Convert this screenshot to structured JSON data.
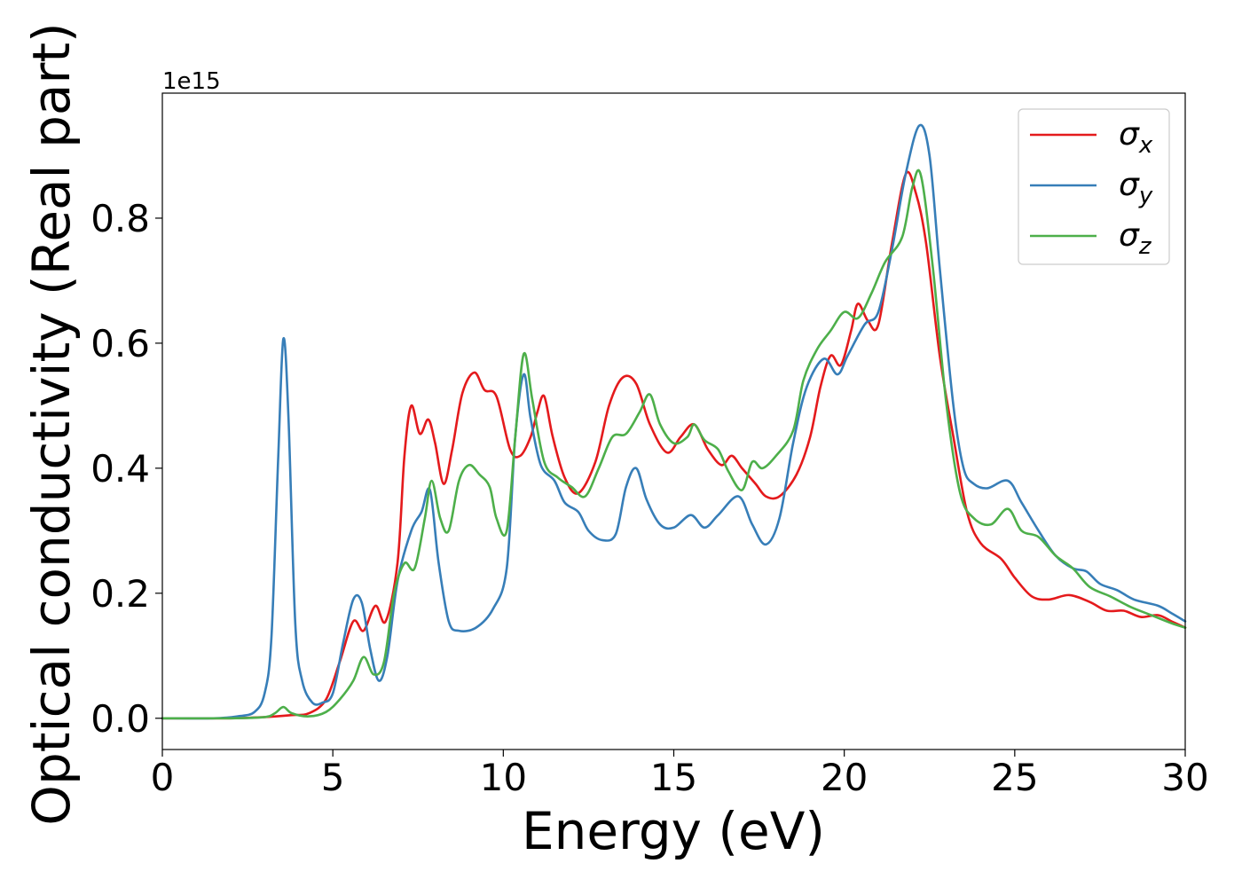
{
  "chart_data": {
    "type": "line",
    "title": "",
    "xlabel": "Energy (eV)",
    "ylabel": "Optical conductivity (Real part)",
    "offset_label": "1e15",
    "xlim": [
      0,
      30
    ],
    "ylim": [
      -0.05,
      1.0
    ],
    "xticks": [
      0,
      5,
      10,
      15,
      20,
      25,
      30
    ],
    "xtick_labels": [
      "0",
      "5",
      "10",
      "15",
      "20",
      "25",
      "30"
    ],
    "yticks": [
      0.0,
      0.2,
      0.4,
      0.6,
      0.8
    ],
    "ytick_labels": [
      "0.0",
      "0.2",
      "0.4",
      "0.6",
      "0.8"
    ],
    "grid": false,
    "legend": {
      "position": "top-right"
    },
    "series": [
      {
        "name": "σ",
        "subscript": "x",
        "color": "#e41a1c",
        "points": [
          [
            0,
            0.0
          ],
          [
            2.0,
            0.0
          ],
          [
            3.0,
            0.002
          ],
          [
            3.8,
            0.005
          ],
          [
            4.3,
            0.008
          ],
          [
            4.8,
            0.03
          ],
          [
            5.2,
            0.09
          ],
          [
            5.6,
            0.155
          ],
          [
            5.9,
            0.14
          ],
          [
            6.25,
            0.18
          ],
          [
            6.55,
            0.155
          ],
          [
            6.9,
            0.25
          ],
          [
            7.1,
            0.42
          ],
          [
            7.3,
            0.5
          ],
          [
            7.55,
            0.455
          ],
          [
            7.8,
            0.478
          ],
          [
            8.0,
            0.44
          ],
          [
            8.25,
            0.375
          ],
          [
            8.5,
            0.43
          ],
          [
            8.8,
            0.52
          ],
          [
            9.15,
            0.553
          ],
          [
            9.45,
            0.525
          ],
          [
            9.8,
            0.515
          ],
          [
            10.2,
            0.43
          ],
          [
            10.5,
            0.42
          ],
          [
            10.8,
            0.45
          ],
          [
            11.0,
            0.49
          ],
          [
            11.2,
            0.515
          ],
          [
            11.45,
            0.45
          ],
          [
            11.8,
            0.385
          ],
          [
            12.2,
            0.36
          ],
          [
            12.7,
            0.41
          ],
          [
            13.1,
            0.5
          ],
          [
            13.5,
            0.545
          ],
          [
            13.9,
            0.535
          ],
          [
            14.3,
            0.47
          ],
          [
            14.8,
            0.425
          ],
          [
            15.2,
            0.45
          ],
          [
            15.6,
            0.47
          ],
          [
            16.0,
            0.43
          ],
          [
            16.4,
            0.405
          ],
          [
            16.7,
            0.42
          ],
          [
            17.0,
            0.4
          ],
          [
            17.4,
            0.375
          ],
          [
            17.7,
            0.355
          ],
          [
            18.1,
            0.355
          ],
          [
            18.6,
            0.39
          ],
          [
            19.0,
            0.45
          ],
          [
            19.3,
            0.53
          ],
          [
            19.6,
            0.58
          ],
          [
            19.9,
            0.565
          ],
          [
            20.2,
            0.62
          ],
          [
            20.4,
            0.663
          ],
          [
            20.7,
            0.635
          ],
          [
            21.0,
            0.63
          ],
          [
            21.4,
            0.76
          ],
          [
            21.8,
            0.87
          ],
          [
            22.1,
            0.84
          ],
          [
            22.4,
            0.76
          ],
          [
            22.8,
            0.58
          ],
          [
            23.2,
            0.45
          ],
          [
            23.6,
            0.33
          ],
          [
            24.0,
            0.28
          ],
          [
            24.6,
            0.255
          ],
          [
            25.0,
            0.225
          ],
          [
            25.5,
            0.195
          ],
          [
            26.0,
            0.19
          ],
          [
            26.6,
            0.197
          ],
          [
            27.2,
            0.186
          ],
          [
            27.7,
            0.172
          ],
          [
            28.2,
            0.172
          ],
          [
            28.7,
            0.162
          ],
          [
            29.2,
            0.165
          ],
          [
            29.6,
            0.155
          ],
          [
            30.0,
            0.145
          ]
        ]
      },
      {
        "name": "σ",
        "subscript": "y",
        "color": "#377eb8",
        "points": [
          [
            0,
            0.0
          ],
          [
            1.5,
            0.0
          ],
          [
            2.2,
            0.003
          ],
          [
            2.7,
            0.01
          ],
          [
            3.0,
            0.04
          ],
          [
            3.2,
            0.13
          ],
          [
            3.4,
            0.42
          ],
          [
            3.55,
            0.607
          ],
          [
            3.7,
            0.48
          ],
          [
            3.9,
            0.15
          ],
          [
            4.1,
            0.06
          ],
          [
            4.4,
            0.025
          ],
          [
            4.7,
            0.025
          ],
          [
            5.0,
            0.04
          ],
          [
            5.3,
            0.12
          ],
          [
            5.6,
            0.19
          ],
          [
            5.85,
            0.185
          ],
          [
            6.1,
            0.11
          ],
          [
            6.35,
            0.06
          ],
          [
            6.6,
            0.1
          ],
          [
            6.9,
            0.22
          ],
          [
            7.3,
            0.3
          ],
          [
            7.6,
            0.33
          ],
          [
            7.85,
            0.365
          ],
          [
            8.1,
            0.25
          ],
          [
            8.4,
            0.155
          ],
          [
            8.7,
            0.14
          ],
          [
            9.2,
            0.145
          ],
          [
            9.7,
            0.175
          ],
          [
            10.1,
            0.24
          ],
          [
            10.35,
            0.45
          ],
          [
            10.6,
            0.55
          ],
          [
            10.8,
            0.48
          ],
          [
            11.1,
            0.405
          ],
          [
            11.5,
            0.38
          ],
          [
            11.8,
            0.345
          ],
          [
            12.2,
            0.33
          ],
          [
            12.5,
            0.3
          ],
          [
            12.9,
            0.285
          ],
          [
            13.3,
            0.295
          ],
          [
            13.6,
            0.37
          ],
          [
            13.9,
            0.4
          ],
          [
            14.2,
            0.35
          ],
          [
            14.6,
            0.31
          ],
          [
            15.0,
            0.305
          ],
          [
            15.5,
            0.325
          ],
          [
            15.9,
            0.305
          ],
          [
            16.3,
            0.325
          ],
          [
            16.9,
            0.355
          ],
          [
            17.3,
            0.31
          ],
          [
            17.7,
            0.278
          ],
          [
            18.1,
            0.32
          ],
          [
            18.5,
            0.44
          ],
          [
            18.9,
            0.53
          ],
          [
            19.4,
            0.575
          ],
          [
            19.8,
            0.55
          ],
          [
            20.1,
            0.58
          ],
          [
            20.6,
            0.63
          ],
          [
            21.0,
            0.65
          ],
          [
            21.4,
            0.75
          ],
          [
            21.8,
            0.87
          ],
          [
            22.2,
            0.948
          ],
          [
            22.5,
            0.9
          ],
          [
            22.8,
            0.72
          ],
          [
            23.2,
            0.5
          ],
          [
            23.5,
            0.4
          ],
          [
            23.8,
            0.375
          ],
          [
            24.2,
            0.368
          ],
          [
            24.8,
            0.38
          ],
          [
            25.2,
            0.345
          ],
          [
            25.7,
            0.3
          ],
          [
            26.2,
            0.26
          ],
          [
            26.7,
            0.24
          ],
          [
            27.1,
            0.235
          ],
          [
            27.5,
            0.215
          ],
          [
            28.0,
            0.205
          ],
          [
            28.5,
            0.19
          ],
          [
            29.2,
            0.18
          ],
          [
            29.6,
            0.168
          ],
          [
            30.0,
            0.155
          ]
        ]
      },
      {
        "name": "σ",
        "subscript": "z",
        "color": "#4daf4a",
        "points": [
          [
            0,
            0.0
          ],
          [
            2.0,
            0.0
          ],
          [
            3.0,
            0.002
          ],
          [
            3.3,
            0.008
          ],
          [
            3.55,
            0.018
          ],
          [
            3.8,
            0.008
          ],
          [
            4.3,
            0.003
          ],
          [
            4.8,
            0.01
          ],
          [
            5.2,
            0.03
          ],
          [
            5.6,
            0.06
          ],
          [
            5.9,
            0.098
          ],
          [
            6.2,
            0.07
          ],
          [
            6.5,
            0.09
          ],
          [
            6.8,
            0.2
          ],
          [
            7.1,
            0.248
          ],
          [
            7.4,
            0.24
          ],
          [
            7.7,
            0.32
          ],
          [
            7.9,
            0.38
          ],
          [
            8.15,
            0.32
          ],
          [
            8.4,
            0.3
          ],
          [
            8.7,
            0.38
          ],
          [
            9.0,
            0.405
          ],
          [
            9.3,
            0.39
          ],
          [
            9.6,
            0.37
          ],
          [
            9.8,
            0.32
          ],
          [
            10.1,
            0.3
          ],
          [
            10.35,
            0.45
          ],
          [
            10.6,
            0.583
          ],
          [
            10.85,
            0.51
          ],
          [
            11.2,
            0.41
          ],
          [
            11.6,
            0.385
          ],
          [
            12.0,
            0.37
          ],
          [
            12.4,
            0.355
          ],
          [
            12.8,
            0.4
          ],
          [
            13.2,
            0.45
          ],
          [
            13.6,
            0.455
          ],
          [
            14.0,
            0.49
          ],
          [
            14.3,
            0.518
          ],
          [
            14.6,
            0.47
          ],
          [
            15.0,
            0.44
          ],
          [
            15.4,
            0.45
          ],
          [
            15.6,
            0.47
          ],
          [
            15.9,
            0.445
          ],
          [
            16.3,
            0.43
          ],
          [
            16.6,
            0.395
          ],
          [
            17.0,
            0.365
          ],
          [
            17.3,
            0.41
          ],
          [
            17.6,
            0.4
          ],
          [
            18.0,
            0.42
          ],
          [
            18.5,
            0.46
          ],
          [
            18.8,
            0.54
          ],
          [
            19.2,
            0.59
          ],
          [
            19.6,
            0.62
          ],
          [
            20.0,
            0.65
          ],
          [
            20.4,
            0.64
          ],
          [
            20.8,
            0.68
          ],
          [
            21.2,
            0.73
          ],
          [
            21.7,
            0.77
          ],
          [
            22.0,
            0.85
          ],
          [
            22.25,
            0.868
          ],
          [
            22.6,
            0.72
          ],
          [
            23.0,
            0.5
          ],
          [
            23.4,
            0.36
          ],
          [
            23.8,
            0.32
          ],
          [
            24.3,
            0.31
          ],
          [
            24.8,
            0.335
          ],
          [
            25.2,
            0.3
          ],
          [
            25.7,
            0.29
          ],
          [
            26.2,
            0.26
          ],
          [
            26.7,
            0.24
          ],
          [
            27.2,
            0.21
          ],
          [
            27.8,
            0.195
          ],
          [
            28.4,
            0.178
          ],
          [
            29.0,
            0.165
          ],
          [
            29.6,
            0.152
          ],
          [
            30.0,
            0.145
          ]
        ]
      }
    ]
  }
}
